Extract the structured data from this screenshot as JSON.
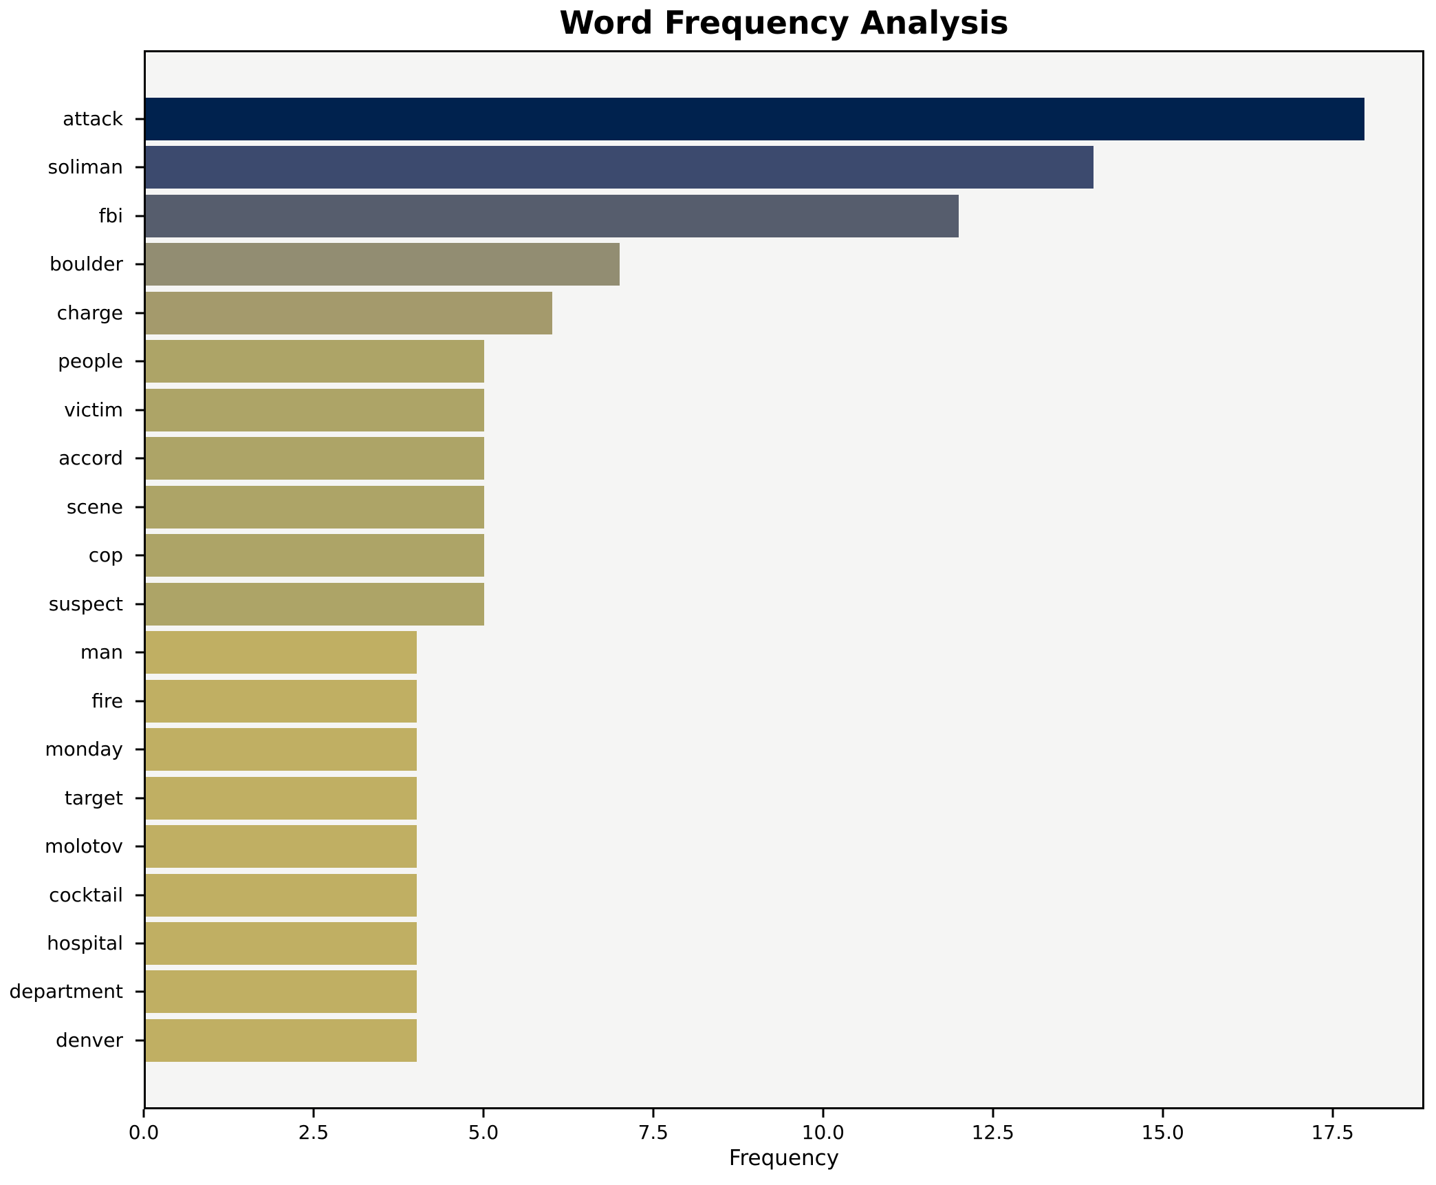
{
  "title": "Word Frequency Analysis",
  "chart_data": {
    "type": "bar",
    "orientation": "horizontal",
    "title": "Word Frequency Analysis",
    "xlabel": "Frequency",
    "ylabel": "",
    "grid": false,
    "legend": null,
    "xlim": [
      0,
      18.85
    ],
    "xticks": [
      0.0,
      2.5,
      5.0,
      7.5,
      10.0,
      12.5,
      15.0,
      17.5
    ],
    "xtick_labels": [
      "0.0",
      "2.5",
      "5.0",
      "7.5",
      "10.0",
      "12.5",
      "15.0",
      "17.5"
    ],
    "categories": [
      "attack",
      "soliman",
      "fbi",
      "boulder",
      "charge",
      "people",
      "victim",
      "accord",
      "scene",
      "cop",
      "suspect",
      "man",
      "fire",
      "monday",
      "target",
      "molotov",
      "cocktail",
      "hospital",
      "department",
      "denver"
    ],
    "values": [
      18,
      14,
      12,
      7,
      6,
      5,
      5,
      5,
      5,
      5,
      5,
      4,
      4,
      4,
      4,
      4,
      4,
      4,
      4,
      4
    ],
    "bar_colors": [
      "#00224e",
      "#3c4a6e",
      "#565d6d",
      "#928d72",
      "#a49a6c",
      "#ada467",
      "#ada467",
      "#ada467",
      "#ada467",
      "#ada467",
      "#ada467",
      "#c0af63",
      "#c0af63",
      "#c0af63",
      "#c0af63",
      "#c0af63",
      "#c0af63",
      "#c0af63",
      "#c0af63",
      "#c0af63"
    ],
    "colors": {
      "plot_background": "#f5f5f4",
      "figure_background": "#ffffff",
      "spine": "#000000",
      "text": "#000000"
    }
  }
}
